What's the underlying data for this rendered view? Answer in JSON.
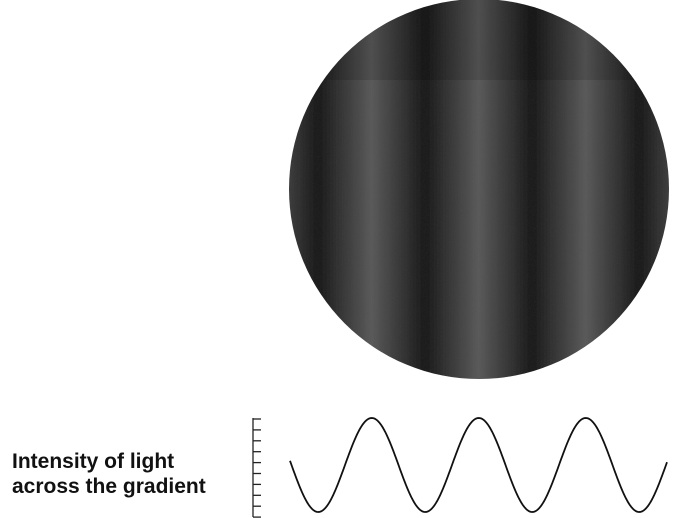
{
  "label": {
    "lines": [
      "Intensity of light",
      "across the gradient"
    ]
  }
}
